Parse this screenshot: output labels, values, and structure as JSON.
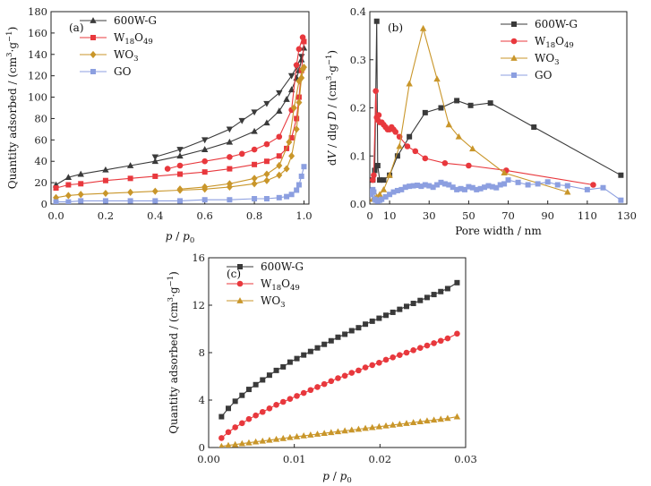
{
  "colors": {
    "600W-G": "#3a3a3a",
    "W18O49": "#e8383d",
    "WO3": "#c9962a",
    "GO": "#8c9fe0"
  },
  "chart_data": [
    {
      "panel": "(a)",
      "type": "line",
      "xlabel": {
        "main": "p",
        "sep": " / ",
        "sub_base": "p",
        "sub": "0"
      },
      "ylabel": {
        "pre": "Quantity adsorbed / (cm",
        "sup1": "3",
        "mid": "·g",
        "sup2": "−1",
        "post": ")"
      },
      "xlim": [
        -0.02,
        1.02
      ],
      "ylim": [
        0,
        180
      ],
      "xticks": [
        "0.0",
        "0.2",
        "0.4",
        "0.6",
        "0.8",
        "1.0"
      ],
      "yticks": [
        "0",
        "20",
        "40",
        "60",
        "80",
        "100",
        "120",
        "140",
        "160",
        "180"
      ],
      "legend": "top-left",
      "series": [
        {
          "name": "600W-G",
          "label_parts": [
            "600W-G"
          ],
          "marker": "triangle",
          "color": "#3a3a3a",
          "x": [
            0.0,
            0.05,
            0.1,
            0.2,
            0.3,
            0.4,
            0.5,
            0.6,
            0.7,
            0.8,
            0.85,
            0.9,
            0.93,
            0.95,
            0.97,
            0.98,
            0.99,
            1.0
          ],
          "y": [
            18,
            25,
            28,
            32,
            36,
            40,
            45,
            51,
            58,
            68,
            76,
            87,
            98,
            107,
            118,
            125,
            135,
            146
          ]
        },
        {
          "name": "600W-G desorption",
          "marker": "triangle-down",
          "color": "#3a3a3a",
          "x": [
            0.99,
            0.97,
            0.95,
            0.9,
            0.85,
            0.8,
            0.75,
            0.7,
            0.6,
            0.5,
            0.4
          ],
          "y": [
            138,
            128,
            120,
            104,
            94,
            86,
            78,
            70,
            60,
            51,
            44
          ]
        },
        {
          "name": "W18O49",
          "label_parts": [
            "W",
            "18",
            "O",
            "49"
          ],
          "marker": "square",
          "color": "#e8383d",
          "x": [
            0.0,
            0.05,
            0.1,
            0.2,
            0.3,
            0.4,
            0.5,
            0.6,
            0.7,
            0.8,
            0.85,
            0.9,
            0.93,
            0.95,
            0.97,
            0.98,
            0.99,
            1.0
          ],
          "y": [
            15,
            18,
            19,
            22,
            24,
            26,
            28,
            30,
            33,
            37,
            40,
            45,
            52,
            62,
            80,
            100,
            125,
            152
          ]
        },
        {
          "name": "W18O49 desorption",
          "marker": "circle",
          "color": "#e8383d",
          "x": [
            0.995,
            0.98,
            0.97,
            0.95,
            0.9,
            0.85,
            0.8,
            0.75,
            0.7,
            0.6,
            0.5,
            0.45
          ],
          "y": [
            156,
            145,
            130,
            88,
            63,
            56,
            51,
            47,
            44,
            40,
            36,
            33
          ]
        },
        {
          "name": "WO3",
          "label_parts": [
            "WO",
            "3"
          ],
          "marker": "diamond",
          "color": "#c9962a",
          "x": [
            0.0,
            0.05,
            0.1,
            0.2,
            0.3,
            0.4,
            0.5,
            0.6,
            0.7,
            0.8,
            0.85,
            0.9,
            0.93,
            0.95,
            0.97,
            0.98,
            0.99,
            1.0
          ],
          "y": [
            6,
            8,
            9,
            10,
            11,
            12,
            13,
            14,
            16,
            19,
            22,
            27,
            33,
            45,
            70,
            95,
            118,
            128
          ]
        },
        {
          "name": "WO3 desorption",
          "marker": "diamond",
          "color": "#c9962a",
          "x": [
            0.995,
            0.98,
            0.96,
            0.94,
            0.9,
            0.85,
            0.8,
            0.7,
            0.6,
            0.5
          ],
          "y": [
            126,
            115,
            90,
            58,
            36,
            28,
            24,
            19,
            16,
            14
          ]
        },
        {
          "name": "GO",
          "label_parts": [
            "GO"
          ],
          "marker": "square",
          "color": "#8c9fe0",
          "x": [
            0.0,
            0.05,
            0.1,
            0.2,
            0.3,
            0.4,
            0.5,
            0.6,
            0.7,
            0.8,
            0.85,
            0.9,
            0.93,
            0.95,
            0.97,
            0.98,
            0.99,
            1.0
          ],
          "y": [
            2,
            2,
            3,
            3,
            3,
            3,
            3,
            4,
            4,
            5,
            5,
            6,
            7,
            9,
            13,
            18,
            26,
            35
          ]
        }
      ]
    },
    {
      "panel": "(b)",
      "type": "line",
      "xlabel": {
        "main": "Pore width / nm"
      },
      "ylabel": {
        "pre": "d",
        "it1": "V",
        "mid": " / dlg ",
        "it2": "D",
        "mid2": " / (cm",
        "sup1": "3",
        "mid3": "·g",
        "sup2": "−1",
        "post": ")"
      },
      "xlim": [
        0,
        130
      ],
      "ylim": [
        0,
        0.4
      ],
      "xticks": [
        "0",
        "10",
        "30",
        "50",
        "70",
        "90",
        "110",
        "130"
      ],
      "xtick_values": [
        0,
        10,
        30,
        50,
        70,
        90,
        110,
        130
      ],
      "yticks": [
        "0.0",
        "0.1",
        "0.2",
        "0.3",
        "0.4"
      ],
      "legend": "top-right",
      "series": [
        {
          "name": "600W-G",
          "label_parts": [
            "600W-G"
          ],
          "marker": "square",
          "color": "#3a3a3a",
          "x": [
            1.5,
            2.5,
            3.5,
            4,
            5,
            7,
            10,
            14,
            20,
            28,
            36,
            44,
            51,
            61,
            83,
            127
          ],
          "y": [
            0.05,
            0.07,
            0.38,
            0.08,
            0.05,
            0.05,
            0.06,
            0.1,
            0.14,
            0.19,
            0.2,
            0.215,
            0.205,
            0.21,
            0.16,
            0.06
          ]
        },
        {
          "name": "W18O49",
          "label_parts": [
            "W",
            "18",
            "O",
            "49"
          ],
          "marker": "circle",
          "color": "#e8383d",
          "x": [
            1.5,
            2,
            3,
            3.5,
            4,
            4.5,
            5,
            6,
            7,
            8,
            9,
            10,
            11,
            12,
            13,
            15,
            19,
            23,
            28,
            38,
            50,
            69,
            113
          ],
          "y": [
            0.05,
            0.06,
            0.235,
            0.18,
            0.175,
            0.185,
            0.17,
            0.17,
            0.165,
            0.16,
            0.155,
            0.155,
            0.16,
            0.155,
            0.15,
            0.14,
            0.12,
            0.11,
            0.095,
            0.085,
            0.08,
            0.07,
            0.04
          ]
        },
        {
          "name": "WO3",
          "label_parts": [
            "WO",
            "3"
          ],
          "marker": "triangle",
          "color": "#c9962a",
          "x": [
            1.5,
            2.5,
            3.5,
            5,
            7,
            10,
            15,
            20,
            27,
            34,
            40,
            45,
            52,
            68,
            100
          ],
          "y": [
            0.01,
            0.012,
            0.015,
            0.02,
            0.03,
            0.06,
            0.12,
            0.25,
            0.365,
            0.26,
            0.165,
            0.14,
            0.115,
            0.065,
            0.025
          ]
        },
        {
          "name": "GO",
          "label_parts": [
            "GO"
          ],
          "marker": "square",
          "color": "#8c9fe0",
          "x": [
            0.5,
            1,
            1.5,
            2,
            2.5,
            3,
            4,
            5,
            6,
            8,
            10,
            12,
            14,
            16,
            18,
            20,
            22,
            24,
            26,
            28,
            30,
            32,
            34,
            36,
            38,
            40,
            42,
            44,
            46,
            48,
            50,
            52,
            54,
            56,
            58,
            60,
            62,
            64,
            66,
            68,
            70,
            75,
            80,
            85,
            90,
            95,
            100,
            110,
            118,
            127
          ],
          "y": [
            0.02,
            0.027,
            0.03,
            0.025,
            0.01,
            0.008,
            0.006,
            0.008,
            0.01,
            0.015,
            0.02,
            0.025,
            0.028,
            0.03,
            0.035,
            0.037,
            0.038,
            0.039,
            0.037,
            0.04,
            0.038,
            0.035,
            0.04,
            0.045,
            0.042,
            0.04,
            0.035,
            0.03,
            0.032,
            0.03,
            0.036,
            0.034,
            0.03,
            0.032,
            0.035,
            0.038,
            0.036,
            0.034,
            0.04,
            0.042,
            0.05,
            0.045,
            0.04,
            0.042,
            0.046,
            0.04,
            0.038,
            0.03,
            0.034,
            0.008
          ]
        }
      ]
    },
    {
      "panel": "(c)",
      "type": "line",
      "xlabel": {
        "main": "p",
        "sep": " / ",
        "sub_base": "p",
        "sub": "0"
      },
      "ylabel": {
        "pre": "Quantity adsorbed / (cm",
        "sup1": "3",
        "mid": "·g",
        "sup2": "−1",
        "post": ")"
      },
      "xlim": [
        0,
        0.03
      ],
      "ylim": [
        0,
        16
      ],
      "xticks": [
        "0.00",
        "0.01",
        "0.02",
        "0.03"
      ],
      "yticks": [
        "0",
        "4",
        "8",
        "12",
        "16"
      ],
      "legend": "top-left",
      "series": [
        {
          "name": "600W-G",
          "label_parts": [
            "600W-G"
          ],
          "marker": "square",
          "color": "#3a3a3a",
          "x": [
            0.0015,
            0.0023,
            0.0031,
            0.0039,
            0.0047,
            0.0055,
            0.0063,
            0.0071,
            0.0079,
            0.0087,
            0.0095,
            0.0103,
            0.0111,
            0.0119,
            0.0127,
            0.0135,
            0.0143,
            0.0151,
            0.0159,
            0.0167,
            0.0175,
            0.0183,
            0.0191,
            0.0199,
            0.0207,
            0.0215,
            0.0223,
            0.0231,
            0.0239,
            0.0247,
            0.0255,
            0.0263,
            0.0271,
            0.0279,
            0.029
          ],
          "y": [
            2.6,
            3.3,
            3.9,
            4.4,
            4.9,
            5.3,
            5.7,
            6.1,
            6.5,
            6.8,
            7.2,
            7.5,
            7.8,
            8.1,
            8.4,
            8.7,
            9.0,
            9.3,
            9.55,
            9.85,
            10.1,
            10.4,
            10.65,
            10.9,
            11.15,
            11.4,
            11.65,
            11.9,
            12.15,
            12.4,
            12.65,
            12.9,
            13.15,
            13.4,
            13.9
          ]
        },
        {
          "name": "W18O49",
          "label_parts": [
            "W",
            "18",
            "O",
            "49"
          ],
          "marker": "circle",
          "color": "#e8383d",
          "x": [
            0.0015,
            0.0023,
            0.0031,
            0.0039,
            0.0047,
            0.0055,
            0.0063,
            0.0071,
            0.0079,
            0.0087,
            0.0095,
            0.0103,
            0.0111,
            0.0119,
            0.0127,
            0.0135,
            0.0143,
            0.0151,
            0.0159,
            0.0167,
            0.0175,
            0.0183,
            0.0191,
            0.0199,
            0.0207,
            0.0215,
            0.0223,
            0.0231,
            0.0239,
            0.0247,
            0.0255,
            0.0263,
            0.0271,
            0.0279,
            0.029
          ],
          "y": [
            0.8,
            1.3,
            1.7,
            2.05,
            2.4,
            2.7,
            3.0,
            3.3,
            3.6,
            3.85,
            4.1,
            4.35,
            4.6,
            4.85,
            5.1,
            5.35,
            5.6,
            5.85,
            6.05,
            6.3,
            6.5,
            6.75,
            6.95,
            7.15,
            7.4,
            7.6,
            7.8,
            8.0,
            8.2,
            8.4,
            8.6,
            8.8,
            9.0,
            9.2,
            9.6
          ]
        },
        {
          "name": "WO3",
          "label_parts": [
            "WO",
            "3"
          ],
          "marker": "triangle",
          "color": "#c9962a",
          "x": [
            0.0015,
            0.0023,
            0.0031,
            0.0039,
            0.0047,
            0.0055,
            0.0063,
            0.0071,
            0.0079,
            0.0087,
            0.0095,
            0.0103,
            0.0111,
            0.0119,
            0.0127,
            0.0135,
            0.0143,
            0.0151,
            0.0159,
            0.0167,
            0.0175,
            0.0183,
            0.0191,
            0.0199,
            0.0207,
            0.0215,
            0.0223,
            0.0231,
            0.0239,
            0.0247,
            0.0255,
            0.0263,
            0.0271,
            0.0279,
            0.029
          ],
          "y": [
            0.1,
            0.18,
            0.25,
            0.33,
            0.4,
            0.48,
            0.55,
            0.62,
            0.7,
            0.77,
            0.85,
            0.92,
            0.99,
            1.06,
            1.13,
            1.2,
            1.27,
            1.34,
            1.41,
            1.48,
            1.55,
            1.62,
            1.69,
            1.76,
            1.83,
            1.9,
            1.97,
            2.04,
            2.11,
            2.18,
            2.25,
            2.32,
            2.39,
            2.46,
            2.6
          ]
        }
      ]
    }
  ]
}
